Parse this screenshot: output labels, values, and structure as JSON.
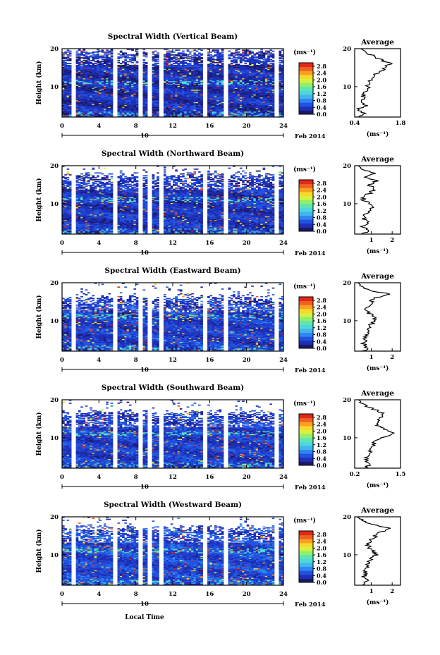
{
  "figure": {
    "x_axis_label": "Local Time",
    "date_label": "Feb 2014",
    "day_label": "10",
    "colorbar_unit": "(ms⁻¹)",
    "avg_unit": "(ms⁻¹)",
    "avg_title": "Average",
    "height_label": "Height (km)"
  },
  "colors": {
    "colormap": [
      "#1a1a66",
      "#1f2fb8",
      "#2253e0",
      "#2f86f0",
      "#3fb6f0",
      "#4fd8d8",
      "#5fe6b0",
      "#8ff06a",
      "#d8f040",
      "#f8d82a",
      "#f8a020",
      "#f06020",
      "#e02a18"
    ]
  },
  "chart_data": [
    {
      "type": "heatmap",
      "title": "Spectral Width (Vertical Beam)",
      "xlabel": "",
      "ylabel": "Height (km)",
      "xlim": [
        0,
        24
      ],
      "ylim": [
        2,
        20
      ],
      "x_ticks": [
        0,
        4,
        8,
        12,
        16,
        20,
        24
      ],
      "y_ticks": [
        10,
        20
      ],
      "colorbar": {
        "ticks": [
          0.0,
          0.4,
          0.8,
          1.2,
          1.6,
          2.0,
          2.4,
          2.8
        ],
        "range": [
          0,
          3.0
        ]
      },
      "data_gaps_hours": [
        [
          1.0,
          1.3
        ],
        [
          5.5,
          5.8
        ],
        [
          8.3,
          8.7
        ],
        [
          9.4,
          9.7
        ],
        [
          10.5,
          10.8
        ],
        [
          15.3,
          15.6
        ],
        [
          17.6,
          17.9
        ],
        [
          23.0,
          23.3
        ]
      ],
      "top_km": 19.5,
      "base_width": 0.35,
      "average": {
        "title": "Average",
        "xlim": [
          0.4,
          1.8
        ],
        "x_ticks": [
          0.4,
          1.8
        ],
        "y_ticks": [
          10,
          20
        ],
        "heights_km": [
          2,
          3,
          4,
          5,
          6,
          7,
          8,
          9,
          10,
          11,
          12,
          13,
          14,
          15,
          16,
          17,
          18,
          19,
          20
        ],
        "values": [
          0.55,
          0.7,
          0.5,
          0.75,
          0.6,
          0.65,
          0.7,
          0.75,
          0.8,
          0.85,
          0.9,
          1.0,
          1.2,
          1.3,
          1.5,
          1.2,
          1.0,
          0.7,
          0.6
        ]
      }
    },
    {
      "type": "heatmap",
      "title": "Spectral Width (Northward Beam)",
      "xlabel": "",
      "ylabel": "Height (km)",
      "xlim": [
        0,
        24
      ],
      "ylim": [
        2,
        20
      ],
      "x_ticks": [
        0,
        4,
        8,
        12,
        16,
        20,
        24
      ],
      "y_ticks": [
        10,
        20
      ],
      "colorbar": {
        "ticks": [
          0.0,
          0.4,
          0.8,
          1.2,
          1.6,
          2.0,
          2.4,
          2.8
        ],
        "range": [
          0,
          3.0
        ]
      },
      "data_gaps_hours": [
        [
          1.0,
          1.3
        ],
        [
          5.5,
          5.8
        ],
        [
          8.3,
          8.7
        ],
        [
          9.4,
          9.7
        ],
        [
          10.5,
          10.8
        ],
        [
          15.3,
          15.6
        ],
        [
          17.6,
          17.9
        ],
        [
          23.0,
          23.3
        ]
      ],
      "top_km": 17.5,
      "base_width": 0.4,
      "average": {
        "title": "Average",
        "xlim": [
          0.2,
          2.4
        ],
        "x_ticks": [
          1,
          2
        ],
        "y_ticks": [
          10,
          20
        ],
        "heights_km": [
          2,
          3,
          4,
          5,
          6,
          7,
          8,
          9,
          10,
          11,
          12,
          13,
          14,
          15,
          16,
          17,
          18,
          19,
          20
        ],
        "values": [
          0.6,
          0.9,
          0.5,
          0.9,
          0.6,
          0.7,
          0.8,
          1.0,
          0.9,
          0.6,
          0.7,
          1.0,
          1.1,
          0.9,
          1.3,
          0.8,
          1.2,
          0.5,
          0.4
        ]
      }
    },
    {
      "type": "heatmap",
      "title": "Spectral Width (Eastward Beam)",
      "xlabel": "",
      "ylabel": "Height (km)",
      "xlim": [
        0,
        24
      ],
      "ylim": [
        2,
        20
      ],
      "x_ticks": [
        0,
        4,
        8,
        12,
        16,
        20,
        24
      ],
      "y_ticks": [
        10,
        20
      ],
      "colorbar": {
        "ticks": [
          0.0,
          0.4,
          0.8,
          1.2,
          1.6,
          2.0,
          2.4,
          2.8
        ],
        "range": [
          0,
          3.0
        ]
      },
      "data_gaps_hours": [
        [
          1.0,
          1.3
        ],
        [
          5.5,
          5.8
        ],
        [
          8.3,
          8.7
        ],
        [
          9.4,
          9.7
        ],
        [
          10.5,
          10.8
        ],
        [
          15.3,
          15.6
        ],
        [
          17.6,
          17.9
        ],
        [
          23.0,
          23.3
        ]
      ],
      "top_km": 16.0,
      "base_width": 0.45,
      "average": {
        "title": "Average",
        "xlim": [
          0.2,
          2.4
        ],
        "x_ticks": [
          1,
          2
        ],
        "y_ticks": [
          10,
          20
        ],
        "heights_km": [
          2,
          3,
          4,
          5,
          6,
          7,
          8,
          9,
          10,
          11,
          12,
          13,
          14,
          15,
          16,
          17,
          18,
          19,
          20
        ],
        "values": [
          0.6,
          0.8,
          0.6,
          0.7,
          0.7,
          0.8,
          0.9,
          1.0,
          1.2,
          1.1,
          0.9,
          0.8,
          0.9,
          1.0,
          1.1,
          2.0,
          0.9,
          0.5,
          0.4
        ]
      }
    },
    {
      "type": "heatmap",
      "title": "Spectral Width (Southward Beam)",
      "xlabel": "",
      "ylabel": "Height (km)",
      "xlim": [
        0,
        24
      ],
      "ylim": [
        2,
        20
      ],
      "x_ticks": [
        0,
        4,
        8,
        12,
        16,
        20,
        24
      ],
      "y_ticks": [
        10,
        20
      ],
      "colorbar": {
        "ticks": [
          0.0,
          0.4,
          0.8,
          1.2,
          1.6,
          2.0,
          2.4,
          2.8
        ],
        "range": [
          0,
          3.0
        ]
      },
      "data_gaps_hours": [
        [
          1.0,
          1.3
        ],
        [
          5.5,
          5.8
        ],
        [
          8.3,
          8.7
        ],
        [
          9.4,
          9.7
        ],
        [
          10.5,
          10.8
        ],
        [
          15.3,
          15.6
        ],
        [
          17.6,
          17.9
        ],
        [
          23.0,
          23.3
        ]
      ],
      "top_km": 16.5,
      "base_width": 0.45,
      "average": {
        "title": "Average",
        "xlim": [
          0.2,
          1.5
        ],
        "x_ticks": [
          0.2,
          1.5
        ],
        "y_ticks": [
          10,
          20
        ],
        "heights_km": [
          2,
          3,
          4,
          5,
          6,
          7,
          8,
          9,
          10,
          11,
          12,
          13,
          14,
          15,
          16,
          17,
          18,
          19,
          20
        ],
        "values": [
          0.5,
          0.6,
          0.5,
          0.55,
          0.6,
          0.7,
          0.7,
          0.8,
          1.0,
          1.3,
          1.1,
          0.9,
          0.8,
          0.9,
          1.0,
          0.9,
          0.6,
          0.4,
          0.35
        ]
      }
    },
    {
      "type": "heatmap",
      "title": "Spectral Width (Westward Beam)",
      "xlabel": "Local Time",
      "ylabel": "Height (km)",
      "xlim": [
        0,
        24
      ],
      "ylim": [
        2,
        20
      ],
      "x_ticks": [
        0,
        4,
        8,
        12,
        16,
        20,
        24
      ],
      "y_ticks": [
        10,
        20
      ],
      "colorbar": {
        "ticks": [
          0.0,
          0.4,
          0.8,
          1.2,
          1.6,
          2.0,
          2.4,
          2.8
        ],
        "range": [
          0,
          3.0
        ]
      },
      "data_gaps_hours": [
        [
          1.0,
          1.3
        ],
        [
          5.5,
          5.8
        ],
        [
          8.3,
          8.7
        ],
        [
          9.4,
          9.7
        ],
        [
          10.5,
          10.8
        ],
        [
          15.3,
          15.6
        ],
        [
          17.6,
          17.9
        ],
        [
          23.0,
          23.3
        ]
      ],
      "top_km": 17.0,
      "base_width": 0.5,
      "average": {
        "title": "Average",
        "xlim": [
          0.2,
          2.4
        ],
        "x_ticks": [
          1,
          2
        ],
        "y_ticks": [
          10,
          20
        ],
        "heights_km": [
          2,
          3,
          4,
          5,
          6,
          7,
          8,
          9,
          10,
          11,
          12,
          13,
          14,
          15,
          16,
          17,
          18,
          19,
          20
        ],
        "values": [
          0.6,
          0.8,
          0.6,
          0.7,
          0.7,
          0.8,
          0.9,
          1.0,
          1.2,
          1.1,
          0.9,
          0.8,
          1.0,
          1.2,
          1.4,
          2.0,
          1.0,
          0.5,
          0.4
        ]
      }
    }
  ]
}
